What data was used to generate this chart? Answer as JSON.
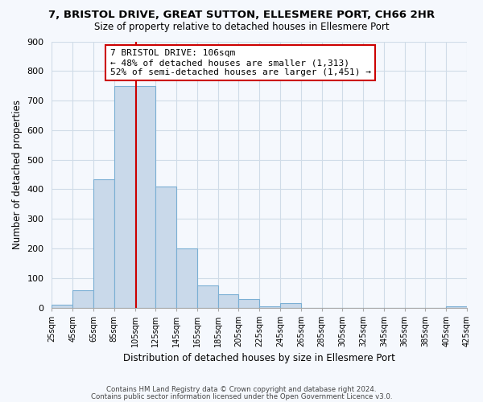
{
  "title": "7, BRISTOL DRIVE, GREAT SUTTON, ELLESMERE PORT, CH66 2HR",
  "subtitle": "Size of property relative to detached houses in Ellesmere Port",
  "xlabel": "Distribution of detached houses by size in Ellesmere Port",
  "ylabel": "Number of detached properties",
  "footer_line1": "Contains HM Land Registry data © Crown copyright and database right 2024.",
  "footer_line2": "Contains public sector information licensed under the Open Government Licence v3.0.",
  "bin_edges": [
    25,
    45,
    65,
    85,
    105,
    125,
    145,
    165,
    185,
    205,
    225,
    245,
    265,
    285,
    305,
    325,
    345,
    365,
    385,
    405,
    425
  ],
  "bar_heights": [
    10,
    60,
    435,
    750,
    750,
    410,
    200,
    75,
    45,
    30,
    5,
    15,
    0,
    0,
    0,
    0,
    0,
    0,
    0,
    5
  ],
  "bar_color": "#c9d9ea",
  "bar_edge_color": "#7bafd4",
  "property_line_x": 106,
  "annotation_title": "7 BRISTOL DRIVE: 106sqm",
  "annotation_line1": "← 48% of detached houses are smaller (1,313)",
  "annotation_line2": "52% of semi-detached houses are larger (1,451) →",
  "annotation_box_color": "#ffffff",
  "annotation_box_edge": "#cc0000",
  "property_line_color": "#cc0000",
  "ylim": [
    0,
    900
  ],
  "yticks": [
    0,
    100,
    200,
    300,
    400,
    500,
    600,
    700,
    800,
    900
  ],
  "tick_labels": [
    "25sqm",
    "45sqm",
    "65sqm",
    "85sqm",
    "105sqm",
    "125sqm",
    "145sqm",
    "165sqm",
    "185sqm",
    "205sqm",
    "225sqm",
    "245sqm",
    "265sqm",
    "285sqm",
    "305sqm",
    "325sqm",
    "345sqm",
    "365sqm",
    "385sqm",
    "405sqm",
    "425sqm"
  ],
  "bg_color": "#f5f8fd",
  "grid_color": "#d0dce8"
}
